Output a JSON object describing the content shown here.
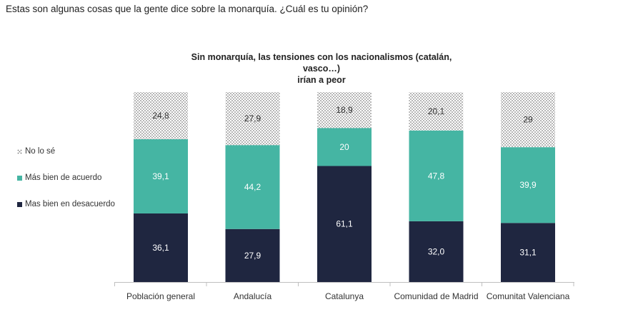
{
  "question": "Estas son algunas cosas que la gente dice sobre la monarquía. ¿Cuál es tu opinión?",
  "chart_data": {
    "type": "bar",
    "stacked": true,
    "title_lines": [
      "Sin monarquía, las tensiones con los nacionalismos (catalán, vasco…)",
      "irían a peor"
    ],
    "categories": [
      "Población general",
      "Andalucía",
      "Catalunya",
      "Comunidad de Madrid",
      "Comunitat Valenciana"
    ],
    "series": [
      {
        "name": "Mas bien en desacuerdo",
        "color": "#1f2640",
        "labels": [
          "36,1",
          "27,9",
          "61,1",
          "32,0",
          "31,1"
        ],
        "values": [
          36.1,
          27.9,
          61.1,
          32.0,
          31.1
        ]
      },
      {
        "name": "Más bien de acuerdo",
        "color": "#45b5a3",
        "labels": [
          "39,1",
          "44,2",
          "20",
          "47,8",
          "39,9"
        ],
        "values": [
          39.1,
          44.2,
          20.0,
          47.8,
          39.9
        ]
      },
      {
        "name": "No lo sé",
        "color": "#d8d8d8",
        "pattern": "dots",
        "labels": [
          "24,8",
          "27,9",
          "18,9",
          "20,1",
          "29"
        ],
        "values": [
          24.8,
          27.9,
          18.9,
          20.1,
          29.0
        ]
      }
    ],
    "legend_order": [
      2,
      1,
      0
    ],
    "ylim": [
      0,
      100
    ],
    "legend_position": "left"
  }
}
